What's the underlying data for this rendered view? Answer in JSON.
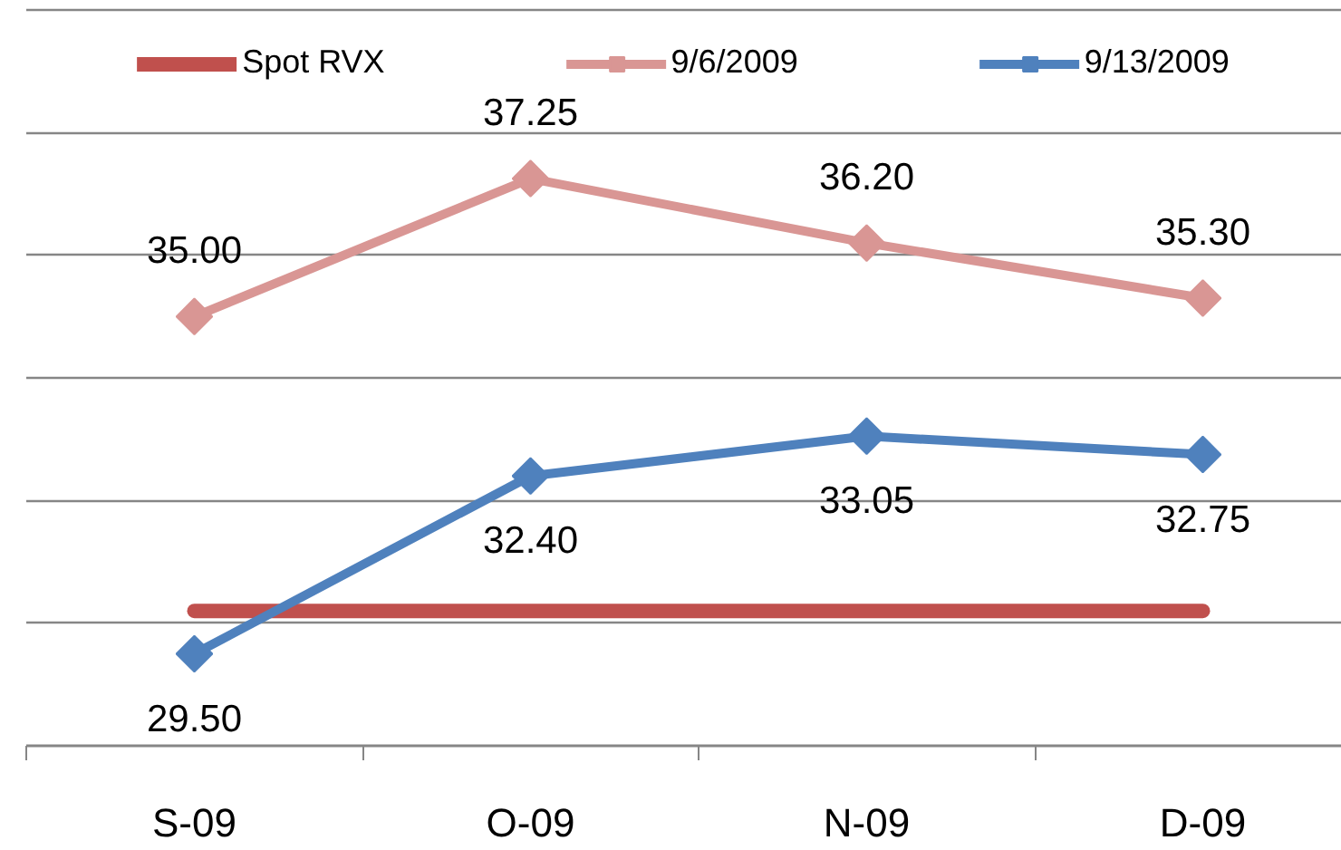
{
  "chart_data": {
    "type": "line",
    "categories": [
      "S-09",
      "O-09",
      "N-09",
      "D-09"
    ],
    "series": [
      {
        "name": "Spot RVX",
        "color": "#c0504d",
        "values": [
          30.2,
          30.2,
          30.2,
          30.2
        ],
        "marker": "none"
      },
      {
        "name": "9/6/2009",
        "color": "#d99694",
        "values": [
          35.0,
          37.25,
          36.2,
          35.3
        ],
        "value_labels": [
          "35.00",
          "37.25",
          "36.20",
          "35.30"
        ],
        "marker": "diamond"
      },
      {
        "name": "9/13/2009",
        "color": "#4f81bd",
        "values": [
          29.5,
          32.4,
          33.05,
          32.75
        ],
        "value_labels": [
          "29.50",
          "32.40",
          "33.05",
          "32.75"
        ],
        "marker": "diamond"
      }
    ],
    "ylim": [
      28,
      40
    ],
    "yticks": [
      {
        "value": 28,
        "label": null
      },
      {
        "value": 30,
        "label": null
      },
      {
        "value": 32,
        "label": null
      },
      {
        "value": 34,
        "label": null
      },
      {
        "value": 36,
        "label": null
      },
      {
        "value": 38,
        "label": null
      },
      {
        "value": 40,
        "label": null
      }
    ],
    "grid": "y",
    "legend": "top",
    "tick_labels": "x",
    "line_style": "solid"
  }
}
